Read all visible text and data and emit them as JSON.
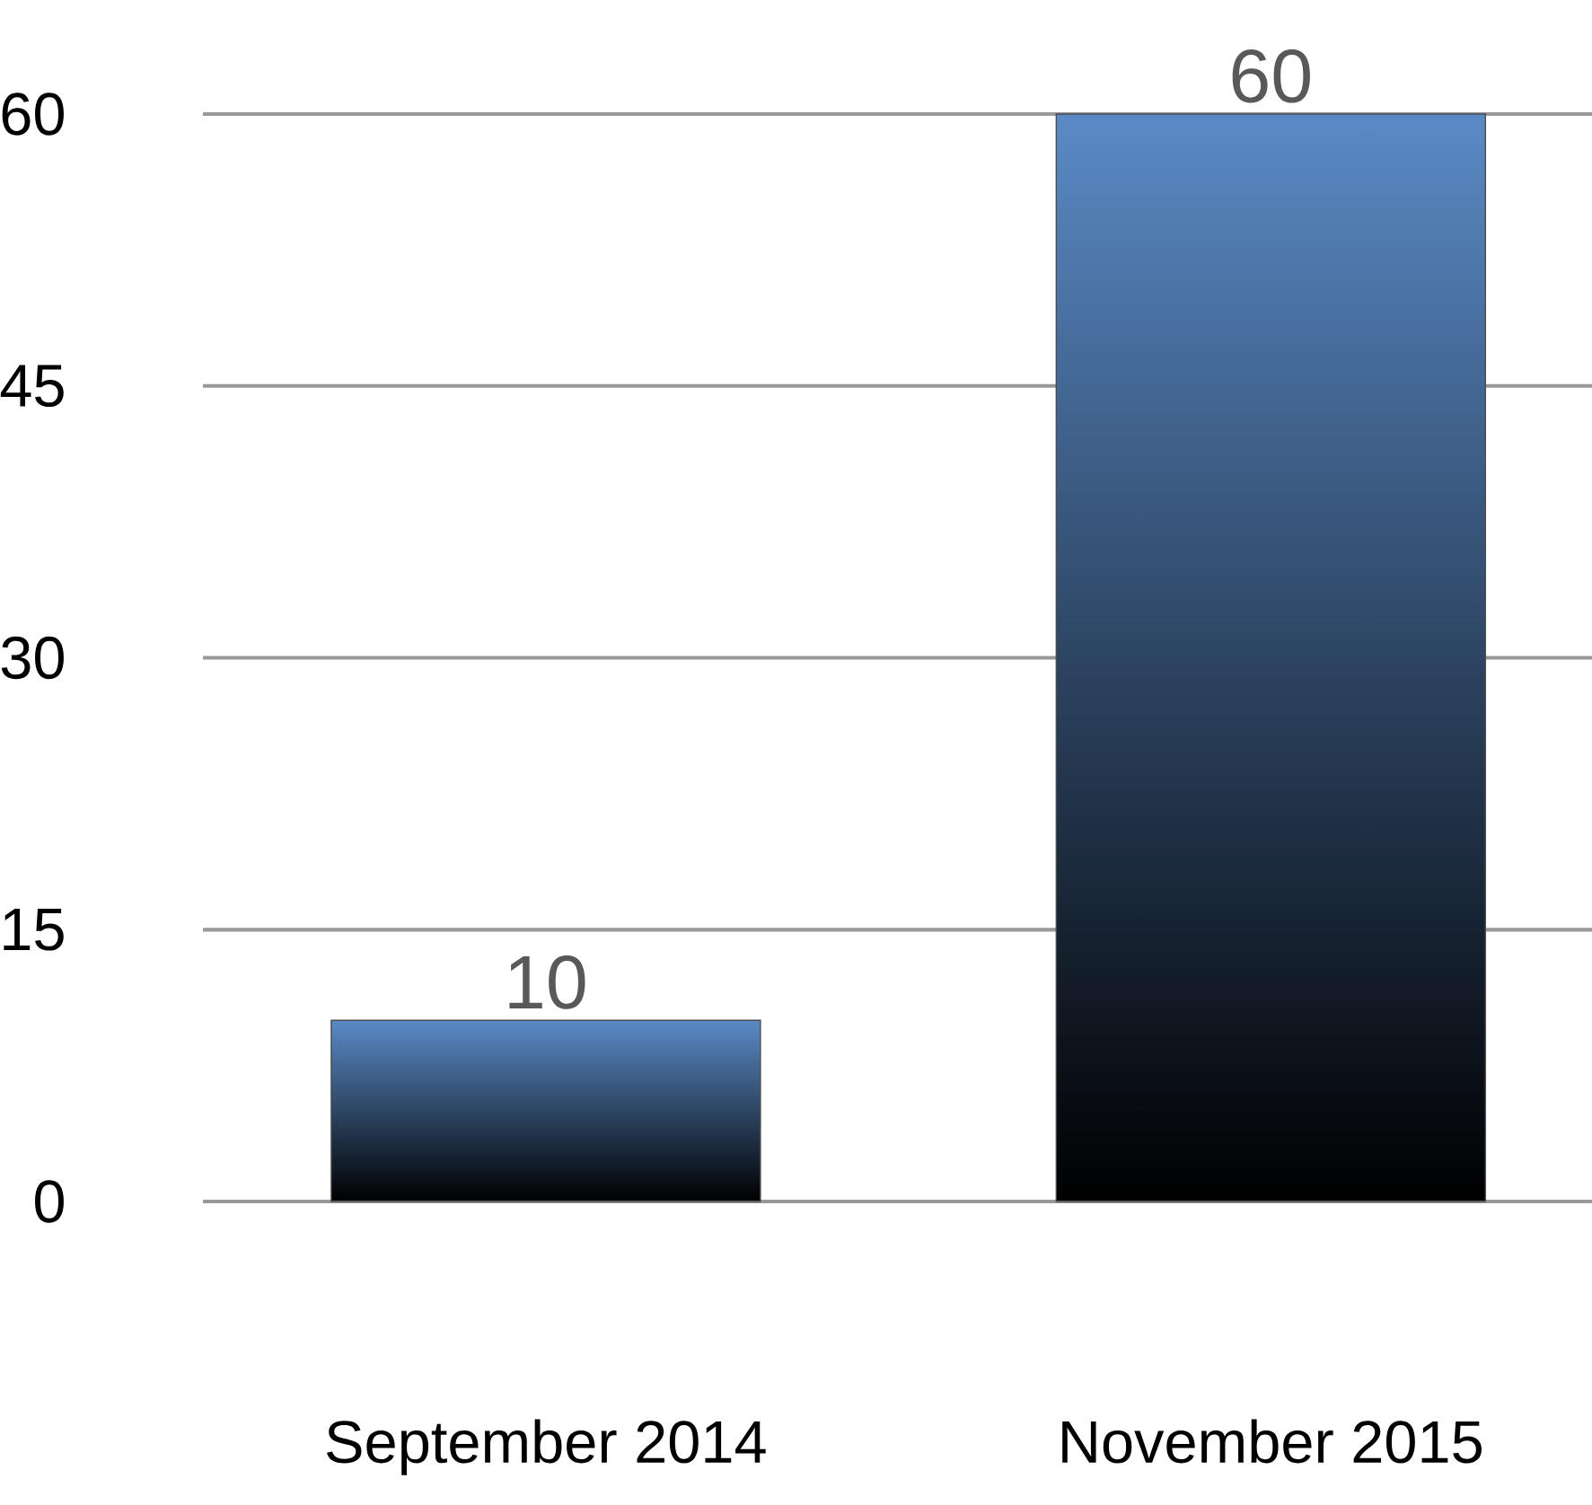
{
  "chart_data": {
    "type": "bar",
    "categories": [
      "September 2014",
      "November 2015"
    ],
    "values": [
      10,
      60
    ],
    "color": "#5a8ac6",
    "ylim": [
      0,
      60
    ],
    "yticks": [
      0,
      15,
      30,
      45,
      60
    ],
    "grid": "y",
    "data_labels": true
  }
}
